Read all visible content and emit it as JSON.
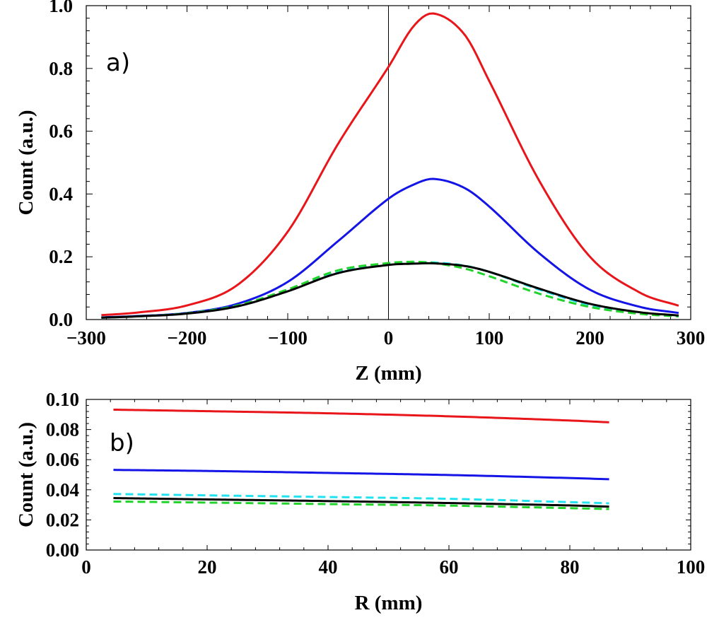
{
  "chart_data": [
    {
      "type": "line",
      "panel_label": "a)",
      "xlabel": "Z (mm)",
      "ylabel": "Count (a.u.)",
      "xlim": [
        -300,
        300
      ],
      "ylim": [
        0,
        1.0
      ],
      "xticks": [
        -300,
        -200,
        -100,
        0,
        100,
        200,
        300
      ],
      "xtick_labels": [
        "−300",
        "−200",
        "−100",
        "0",
        "100",
        "200",
        "300"
      ],
      "yticks": [
        0,
        0.2,
        0.4,
        0.6,
        0.8,
        1.0
      ],
      "ytick_labels": [
        "0.0",
        "0.2",
        "0.4",
        "0.6",
        "0.8",
        "1.0"
      ],
      "vertical_line_x": 0,
      "x": [
        -285,
        -250,
        -200,
        -150,
        -100,
        -50,
        0,
        25,
        45,
        75,
        100,
        150,
        200,
        250,
        288
      ],
      "series": [
        {
          "name": "red",
          "color": "#e8161b",
          "dash": "solid",
          "values": [
            0.014,
            0.022,
            0.045,
            0.11,
            0.28,
            0.56,
            0.805,
            0.935,
            0.975,
            0.91,
            0.76,
            0.44,
            0.2,
            0.085,
            0.044
          ]
        },
        {
          "name": "blue",
          "color": "#1414e6",
          "dash": "solid",
          "values": [
            0.007,
            0.011,
            0.021,
            0.05,
            0.12,
            0.25,
            0.385,
            0.43,
            0.448,
            0.42,
            0.36,
            0.21,
            0.095,
            0.04,
            0.021
          ]
        },
        {
          "name": "cyan",
          "color": "#23e2f0",
          "dash": "dashed",
          "values": [
            0.006,
            0.01,
            0.02,
            0.044,
            0.092,
            0.15,
            0.176,
            0.182,
            0.182,
            0.172,
            0.152,
            0.095,
            0.046,
            0.021,
            0.012
          ]
        },
        {
          "name": "green",
          "color": "#22d32b",
          "dash": "dashed",
          "values": [
            0.006,
            0.01,
            0.02,
            0.045,
            0.096,
            0.157,
            0.18,
            0.184,
            0.18,
            0.163,
            0.138,
            0.082,
            0.04,
            0.018,
            0.01
          ]
        },
        {
          "name": "black",
          "color": "#000000",
          "dash": "solid",
          "values": [
            0.006,
            0.01,
            0.019,
            0.042,
            0.09,
            0.148,
            0.174,
            0.178,
            0.179,
            0.171,
            0.152,
            0.098,
            0.05,
            0.023,
            0.013
          ]
        }
      ]
    },
    {
      "type": "line",
      "panel_label": "b)",
      "xlabel": "R (mm)",
      "ylabel": "Count (a.u.)",
      "xlim": [
        0,
        100
      ],
      "ylim": [
        0,
        0.1
      ],
      "xticks": [
        0,
        20,
        40,
        60,
        80,
        100
      ],
      "xtick_labels": [
        "0",
        "20",
        "40",
        "60",
        "80",
        "100"
      ],
      "yticks": [
        0,
        0.02,
        0.04,
        0.06,
        0.08,
        0.1
      ],
      "ytick_labels": [
        "0.00",
        "0.02",
        "0.04",
        "0.06",
        "0.08",
        "0.10"
      ],
      "x": [
        4.5,
        20,
        40,
        60,
        80,
        86.5
      ],
      "series": [
        {
          "name": "red",
          "color": "#e8161b",
          "dash": "solid",
          "values": [
            0.0932,
            0.0922,
            0.0908,
            0.0888,
            0.086,
            0.0848
          ]
        },
        {
          "name": "blue",
          "color": "#1414e6",
          "dash": "solid",
          "values": [
            0.0532,
            0.0525,
            0.0512,
            0.0498,
            0.0478,
            0.047
          ]
        },
        {
          "name": "cyan",
          "color": "#23e2f0",
          "dash": "dashed",
          "values": [
            0.0372,
            0.0363,
            0.0352,
            0.034,
            0.0318,
            0.031
          ]
        },
        {
          "name": "black",
          "color": "#000000",
          "dash": "solid",
          "values": [
            0.0345,
            0.0336,
            0.0325,
            0.0312,
            0.0296,
            0.0288
          ]
        },
        {
          "name": "green",
          "color": "#22d32b",
          "dash": "dashed",
          "values": [
            0.0322,
            0.0315,
            0.0305,
            0.0295,
            0.0278,
            0.0272
          ]
        }
      ]
    }
  ]
}
